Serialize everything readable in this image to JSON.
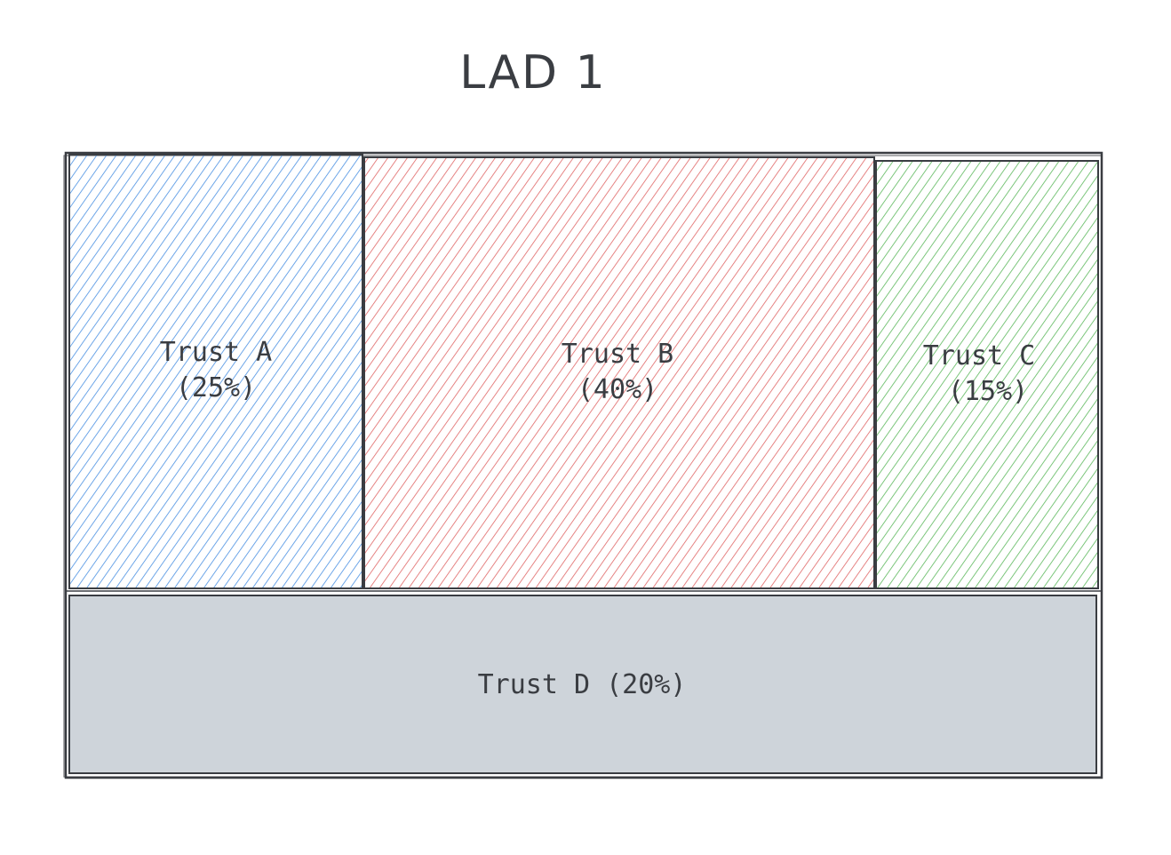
{
  "title": "LAD 1",
  "regions": [
    {
      "name": "Trust A",
      "share": "(25%)",
      "color": "#4a90e2",
      "fill": "hatch"
    },
    {
      "name": "Trust B",
      "share": "(40%)",
      "color": "#e06666",
      "fill": "hatch"
    },
    {
      "name": "Trust C",
      "share": "(15%)",
      "color": "#5cb85c",
      "fill": "hatch"
    },
    {
      "name": "Trust D",
      "share": "(20%)",
      "color": "#ced4da",
      "fill": "solid"
    }
  ],
  "outline_color": "#3a3d42"
}
